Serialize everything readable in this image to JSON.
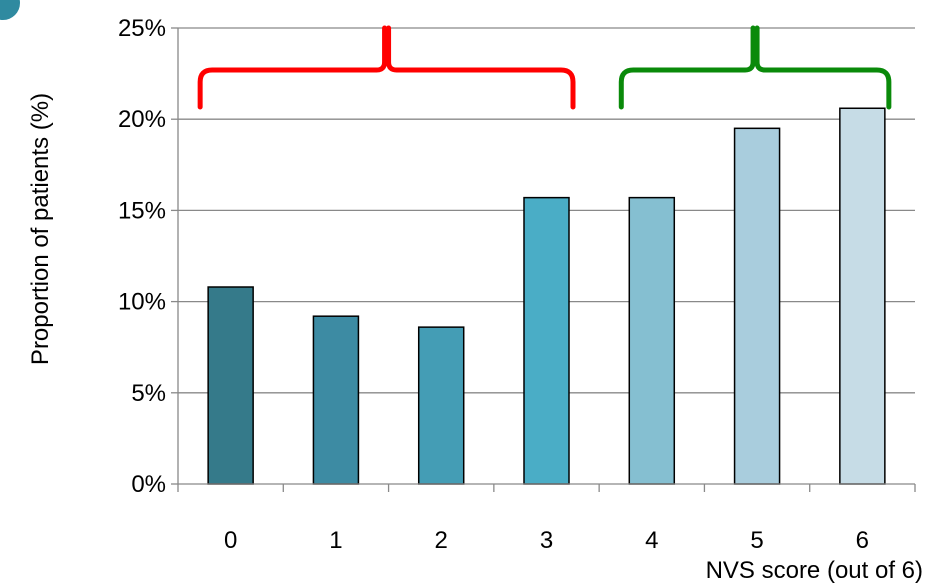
{
  "chart_data": {
    "type": "bar",
    "categories": [
      "0",
      "1",
      "2",
      "3",
      "4",
      "5",
      "6"
    ],
    "values": [
      10.8,
      9.2,
      8.6,
      15.7,
      15.7,
      19.5,
      20.6
    ],
    "bar_colors": [
      "#357a8a",
      "#3d8ba3",
      "#449db5",
      "#4aadc6",
      "#85bfd1",
      "#a9cddd",
      "#c6dce6"
    ],
    "ylim": [
      0,
      25
    ],
    "ytick_labels": [
      "0%",
      "5%",
      "10%",
      "15%",
      "20%",
      "25%"
    ],
    "ylabel": "Proportion of patients (%)",
    "xlabel": "NVS score (out of 6)",
    "grid": true,
    "annotations": [
      {
        "type": "brace",
        "from_category": "0",
        "to_category": "3",
        "color": "#ff0000"
      },
      {
        "type": "brace",
        "from_category": "4",
        "to_category": "6",
        "color": "#0a8a0a"
      }
    ]
  },
  "colors": {
    "gridline": "#898989",
    "axis": "#898989",
    "corner_accent": "#2f8aa0"
  }
}
